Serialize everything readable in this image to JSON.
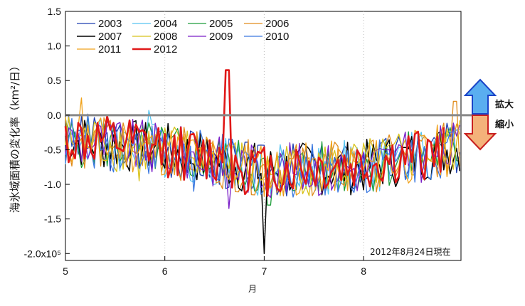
{
  "chart_data": {
    "type": "line",
    "ylabel": "海氷域面積の変化率（km²/日）",
    "xlabel": "月",
    "annotation": "2012年8月24日現在",
    "side_labels": {
      "expand": "拡大",
      "shrink": "縮小"
    },
    "colors": {
      "expand_arrow": "#5aaef0",
      "shrink_arrow": "#f4b27a"
    },
    "xlim": [
      5,
      8.98
    ],
    "ylim": [
      -2.1,
      1.5
    ],
    "x_ticks": [
      "5",
      "6",
      "7",
      "8"
    ],
    "y_ticks": [
      "1.5",
      "1.0",
      "0.5",
      "0.0",
      "-0.5",
      "-1.0",
      "-1.5",
      "-2.0x10⁵"
    ],
    "y_tick_values": [
      1.5,
      1.0,
      0.5,
      0.0,
      -0.5,
      -1.0,
      -1.5,
      -2.0
    ],
    "zero_line": 0,
    "grid": "vertical dotted at month boundaries",
    "legend_placement": "top-left",
    "series": [
      {
        "name": "2003",
        "color": "#1f3fb0",
        "width": 1.3,
        "end": 8.98,
        "seed": 3,
        "spike": [
          6.55,
          -1.0
        ]
      },
      {
        "name": "2004",
        "color": "#56c4f0",
        "width": 1.3,
        "end": 8.98,
        "seed": 4,
        "spike": [
          5.85,
          0.07
        ]
      },
      {
        "name": "2005",
        "color": "#1e9e3a",
        "width": 1.3,
        "end": 8.98,
        "seed": 5,
        "spike": [
          7.05,
          -1.3
        ]
      },
      {
        "name": "2006",
        "color": "#e08c1c",
        "width": 1.3,
        "end": 8.98,
        "seed": 6,
        "spike": [
          8.92,
          0.2
        ]
      },
      {
        "name": "2007",
        "color": "#000000",
        "width": 1.5,
        "end": 8.98,
        "seed": 7,
        "spike": [
          7.0,
          -2.0
        ]
      },
      {
        "name": "2008",
        "color": "#d8c21a",
        "width": 1.3,
        "end": 8.98,
        "seed": 8,
        "spike": [
          5.75,
          -0.95
        ]
      },
      {
        "name": "2009",
        "color": "#7a1fc8",
        "width": 1.3,
        "end": 8.98,
        "seed": 9,
        "spike": [
          6.65,
          -1.35
        ]
      },
      {
        "name": "2010",
        "color": "#3a78e0",
        "width": 1.3,
        "end": 8.98,
        "seed": 10,
        "spike": [
          6.3,
          -1.1
        ]
      },
      {
        "name": "2011",
        "color": "#f0a21a",
        "width": 1.3,
        "end": 8.98,
        "seed": 11,
        "spike": [
          5.15,
          0.25
        ]
      },
      {
        "name": "2012",
        "color": "#e01818",
        "width": 2.6,
        "end": 8.83,
        "seed": 12,
        "spike": [
          6.63,
          0.65
        ]
      }
    ]
  }
}
